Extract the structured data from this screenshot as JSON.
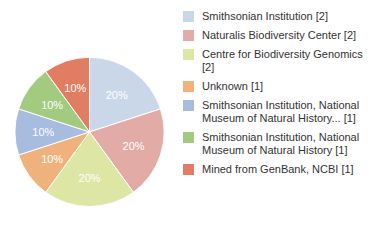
{
  "chart_data": {
    "type": "pie",
    "categories": [
      "Smithsonian Institution [2]",
      "Naturalis Biodiversity Center [2]",
      "Centre for Biodiversity Genomics [2]",
      "Unknown [1]",
      "Smithsonian Institution, National Museum of Natural History... [1]",
      "Smithsonian Institution, National Museum of Natural History [1]",
      "Mined from GenBank, NCBI [1]"
    ],
    "values": [
      20,
      20,
      20,
      10,
      10,
      10,
      10
    ],
    "value_labels": [
      "20%",
      "20%",
      "20%",
      "10%",
      "10%",
      "10%",
      "10%"
    ],
    "colors": [
      "#c9d7e8",
      "#e3aba5",
      "#dde6a5",
      "#f0b27c",
      "#a7bcdf",
      "#a2cb80",
      "#e07d62"
    ],
    "legend": "right",
    "data_labels": true
  }
}
